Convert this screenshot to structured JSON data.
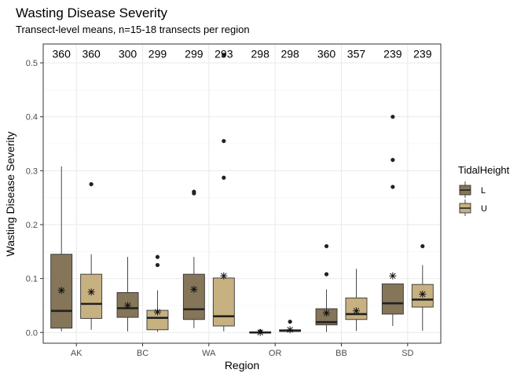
{
  "chart_data": {
    "type": "boxplot",
    "title": "Wasting Disease Severity",
    "subtitle": "Transect-level means, n=15-18 transects per region",
    "xlabel": "Region",
    "ylabel": "Wasting Disease Severity",
    "ylim": [
      -0.02,
      0.535
    ],
    "yticks": [
      "0.0",
      "0.1",
      "0.2",
      "0.3",
      "0.4",
      "0.5"
    ],
    "ytick_values": [
      0,
      0.1,
      0.2,
      0.3,
      0.4,
      0.5
    ],
    "categories": [
      "AK",
      "BC",
      "WA",
      "OR",
      "BB",
      "SD"
    ],
    "grid": true,
    "legend": {
      "title": "TidalHeight",
      "position": "right",
      "entries": [
        {
          "label": "L",
          "color": "#857559"
        },
        {
          "label": "U",
          "color": "#c7b181"
        }
      ]
    },
    "count_label_y": 0.517,
    "boxes": [
      {
        "region": "AK",
        "group": "L",
        "count": "360",
        "lower_whisker": 0.002,
        "q1": 0.008,
        "median": 0.04,
        "q3": 0.145,
        "upper_whisker": 0.308,
        "mean": 0.078,
        "outliers": []
      },
      {
        "region": "AK",
        "group": "U",
        "count": "360",
        "lower_whisker": 0.005,
        "q1": 0.026,
        "median": 0.053,
        "q3": 0.108,
        "upper_whisker": 0.145,
        "mean": 0.075,
        "outliers": [
          0.275
        ]
      },
      {
        "region": "BC",
        "group": "L",
        "count": "300",
        "lower_whisker": 0.002,
        "q1": 0.028,
        "median": 0.045,
        "q3": 0.074,
        "upper_whisker": 0.14,
        "mean": 0.05,
        "outliers": []
      },
      {
        "region": "BC",
        "group": "U",
        "count": "299",
        "lower_whisker": 0.001,
        "q1": 0.005,
        "median": 0.027,
        "q3": 0.041,
        "upper_whisker": 0.078,
        "mean": 0.038,
        "outliers": [
          0.125,
          0.14
        ]
      },
      {
        "region": "WA",
        "group": "L",
        "count": "299",
        "lower_whisker": 0.008,
        "q1": 0.024,
        "median": 0.043,
        "q3": 0.108,
        "upper_whisker": 0.14,
        "mean": 0.08,
        "outliers": [
          0.258,
          0.261
        ]
      },
      {
        "region": "WA",
        "group": "U",
        "count": "293",
        "lower_whisker": 0.002,
        "q1": 0.012,
        "median": 0.03,
        "q3": 0.101,
        "upper_whisker": 0.102,
        "mean": 0.105,
        "outliers": [
          0.287,
          0.355,
          0.515
        ]
      },
      {
        "region": "OR",
        "group": "L",
        "count": "298",
        "lower_whisker": -0.002,
        "q1": -0.001,
        "median": 0.0,
        "q3": 0.001,
        "upper_whisker": 0.002,
        "mean": 0.0,
        "outliers": [
          0.002
        ]
      },
      {
        "region": "OR",
        "group": "U",
        "count": "298",
        "lower_whisker": 0.001,
        "q1": 0.002,
        "median": 0.003,
        "q3": 0.005,
        "upper_whisker": 0.008,
        "mean": 0.005,
        "outliers": [
          0.02
        ]
      },
      {
        "region": "BB",
        "group": "L",
        "count": "360",
        "lower_whisker": 0.001,
        "q1": 0.014,
        "median": 0.019,
        "q3": 0.044,
        "upper_whisker": 0.08,
        "mean": 0.036,
        "outliers": [
          0.108,
          0.16
        ]
      },
      {
        "region": "BB",
        "group": "U",
        "count": "357",
        "lower_whisker": 0.003,
        "q1": 0.024,
        "median": 0.034,
        "q3": 0.064,
        "upper_whisker": 0.118,
        "mean": 0.04,
        "outliers": []
      },
      {
        "region": "SD",
        "group": "L",
        "count": "239",
        "lower_whisker": 0.012,
        "q1": 0.034,
        "median": 0.054,
        "q3": 0.09,
        "upper_whisker": 0.09,
        "mean": 0.105,
        "outliers": [
          0.27,
          0.32,
          0.4
        ]
      },
      {
        "region": "SD",
        "group": "U",
        "count": "239",
        "lower_whisker": 0.003,
        "q1": 0.047,
        "median": 0.061,
        "q3": 0.089,
        "upper_whisker": 0.125,
        "mean": 0.071,
        "outliers": [
          0.16
        ]
      }
    ]
  }
}
